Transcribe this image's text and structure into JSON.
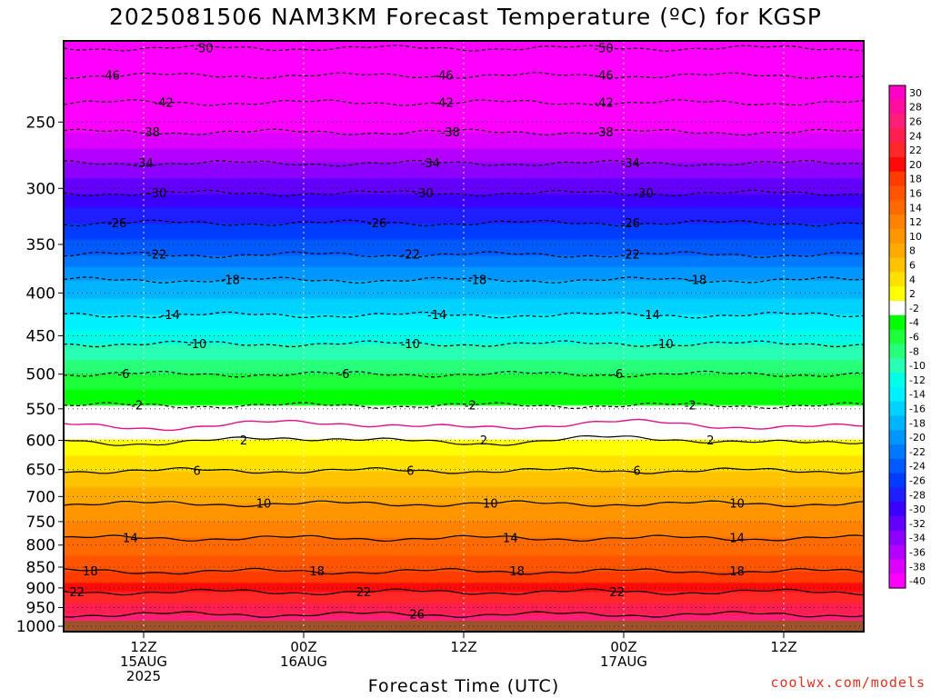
{
  "title": "2025081506 NAM3KM Forecast Temperature (ºC) for KGSP",
  "footer_credit": "coolwx.com/models",
  "chart_data": {
    "type": "heatmap",
    "title": "2025081506 NAM3KM Forecast Temperature (ºC) for KGSP",
    "xlabel": "Forecast Time (UTC)",
    "ylabel": "",
    "x_range_hours": [
      0,
      60
    ],
    "y_range_hPa": [
      200,
      1015
    ],
    "y_scale": "log-pressure (inverted)",
    "y_ticks": [
      250,
      300,
      350,
      400,
      450,
      500,
      550,
      600,
      650,
      700,
      750,
      800,
      850,
      900,
      950,
      1000
    ],
    "x_ticks": [
      {
        "hour": 6,
        "label": [
          "12Z",
          "15AUG",
          "2025"
        ]
      },
      {
        "hour": 18,
        "label": [
          "00Z",
          "16AUG"
        ]
      },
      {
        "hour": 30,
        "label": [
          "12Z"
        ]
      },
      {
        "hour": 42,
        "label": [
          "00Z",
          "17AUG"
        ]
      },
      {
        "hour": 54,
        "label": [
          "12Z"
        ]
      }
    ],
    "grid": true,
    "surface_pressure_hPa": 985,
    "colorbar": {
      "placement": "right",
      "levels": [
        30,
        28,
        26,
        24,
        22,
        20,
        18,
        16,
        14,
        12,
        10,
        8,
        6,
        4,
        2,
        -2,
        -4,
        -6,
        -8,
        -10,
        -12,
        -14,
        -16,
        -18,
        -20,
        -22,
        -24,
        -26,
        -28,
        -30,
        -32,
        -34,
        -36,
        -38,
        -40
      ],
      "colors": [
        "#ff00c8",
        "#ff0f9c",
        "#ff1e78",
        "#ff1e50",
        "#ff2828",
        "#ff0a0a",
        "#ff3c00",
        "#ff5500",
        "#ff6a00",
        "#ff8200",
        "#ff9600",
        "#ffaa00",
        "#ffc300",
        "#ffe100",
        "#ffff00",
        "#ffffff",
        "#00ff00",
        "#1eff3c",
        "#28ff78",
        "#28ffb4",
        "#00ffe6",
        "#00f0ff",
        "#00d2ff",
        "#00b4ff",
        "#0096ff",
        "#0078ff",
        "#005aff",
        "#003cff",
        "#1e1eff",
        "#3c00ff",
        "#6400ff",
        "#8c00ff",
        "#b400ff",
        "#dc00ff",
        "#ff00ff"
      ]
    },
    "isotherms": [
      {
        "value": -50,
        "pressure_hPa": 204,
        "labels": [
          {
            "hour": 10.5,
            "text": "-50"
          },
          {
            "hour": 40.5,
            "text": "-50"
          }
        ]
      },
      {
        "value": -46,
        "pressure_hPa": 220,
        "labels": [
          {
            "hour": 3.5,
            "text": "-46"
          },
          {
            "hour": 28.5,
            "text": "-46"
          },
          {
            "hour": 40.5,
            "text": "-46"
          }
        ]
      },
      {
        "value": -42,
        "pressure_hPa": 237,
        "labels": [
          {
            "hour": 7.5,
            "text": "-42"
          },
          {
            "hour": 28.5,
            "text": "-42"
          },
          {
            "hour": 40.5,
            "text": "-42"
          }
        ]
      },
      {
        "value": -38,
        "pressure_hPa": 257,
        "labels": [
          {
            "hour": 6.5,
            "text": "-38"
          },
          {
            "hour": 29,
            "text": "-38"
          },
          {
            "hour": 40.5,
            "text": "-38"
          }
        ]
      },
      {
        "value": -34,
        "pressure_hPa": 280,
        "labels": [
          {
            "hour": 6,
            "text": "-34"
          },
          {
            "hour": 27.5,
            "text": "-34"
          },
          {
            "hour": 42.5,
            "text": "-34"
          }
        ]
      },
      {
        "value": -30,
        "pressure_hPa": 304,
        "labels": [
          {
            "hour": 7,
            "text": "-30"
          },
          {
            "hour": 27,
            "text": "-30"
          },
          {
            "hour": 43.5,
            "text": "-30"
          }
        ]
      },
      {
        "value": -26,
        "pressure_hPa": 330,
        "labels": [
          {
            "hour": 4,
            "text": "-26"
          },
          {
            "hour": 23.5,
            "text": "-26"
          },
          {
            "hour": 42.5,
            "text": "-26"
          }
        ]
      },
      {
        "value": -22,
        "pressure_hPa": 360,
        "labels": [
          {
            "hour": 7,
            "text": "-22"
          },
          {
            "hour": 26,
            "text": "-22"
          },
          {
            "hour": 42.5,
            "text": "-22"
          }
        ]
      },
      {
        "value": -18,
        "pressure_hPa": 386,
        "labels": [
          {
            "hour": 12.5,
            "text": "-18"
          },
          {
            "hour": 31,
            "text": "-18"
          },
          {
            "hour": 47.5,
            "text": "-18"
          }
        ]
      },
      {
        "value": -14,
        "pressure_hPa": 425,
        "labels": [
          {
            "hour": 8,
            "text": "-14"
          },
          {
            "hour": 28,
            "text": "-14"
          },
          {
            "hour": 44,
            "text": "-14"
          }
        ]
      },
      {
        "value": -10,
        "pressure_hPa": 460,
        "labels": [
          {
            "hour": 10,
            "text": "-10"
          },
          {
            "hour": 26,
            "text": "-10"
          },
          {
            "hour": 45,
            "text": "-10"
          }
        ]
      },
      {
        "value": -6,
        "pressure_hPa": 500,
        "labels": [
          {
            "hour": 4.5,
            "text": "-6"
          },
          {
            "hour": 21,
            "text": "-6"
          },
          {
            "hour": 41.5,
            "text": "-6"
          }
        ]
      },
      {
        "value": -2,
        "pressure_hPa": 545,
        "labels": [
          {
            "hour": 5.5,
            "text": "-2"
          },
          {
            "hour": 30.5,
            "text": "-2"
          },
          {
            "hour": 47,
            "text": "-2"
          }
        ]
      },
      {
        "value": 0,
        "pressure_hPa": 575,
        "labels": []
      },
      {
        "value": 2,
        "pressure_hPa": 600,
        "labels": [
          {
            "hour": 13.5,
            "text": "2"
          },
          {
            "hour": 31.5,
            "text": "2"
          },
          {
            "hour": 48.5,
            "text": "2"
          }
        ]
      },
      {
        "value": 6,
        "pressure_hPa": 652,
        "labels": [
          {
            "hour": 10,
            "text": "6"
          },
          {
            "hour": 26,
            "text": "6"
          },
          {
            "hour": 43,
            "text": "6"
          }
        ]
      },
      {
        "value": 10,
        "pressure_hPa": 714,
        "labels": [
          {
            "hour": 15,
            "text": "10"
          },
          {
            "hour": 32,
            "text": "10"
          },
          {
            "hour": 50.5,
            "text": "10"
          }
        ]
      },
      {
        "value": 14,
        "pressure_hPa": 785,
        "labels": [
          {
            "hour": 5,
            "text": "14"
          },
          {
            "hour": 33.5,
            "text": "14"
          },
          {
            "hour": 50.5,
            "text": "14"
          }
        ]
      },
      {
        "value": 18,
        "pressure_hPa": 860,
        "labels": [
          {
            "hour": 2,
            "text": "18"
          },
          {
            "hour": 19,
            "text": "18"
          },
          {
            "hour": 34,
            "text": "18"
          },
          {
            "hour": 50.5,
            "text": "18"
          }
        ]
      },
      {
        "value": 22,
        "pressure_hPa": 910,
        "labels": [
          {
            "hour": 1,
            "text": "22"
          },
          {
            "hour": 22.5,
            "text": "22"
          },
          {
            "hour": 41.5,
            "text": "22"
          }
        ]
      },
      {
        "value": 26,
        "pressure_hPa": 968,
        "labels": [
          {
            "hour": 26.5,
            "text": "26"
          }
        ]
      }
    ]
  }
}
